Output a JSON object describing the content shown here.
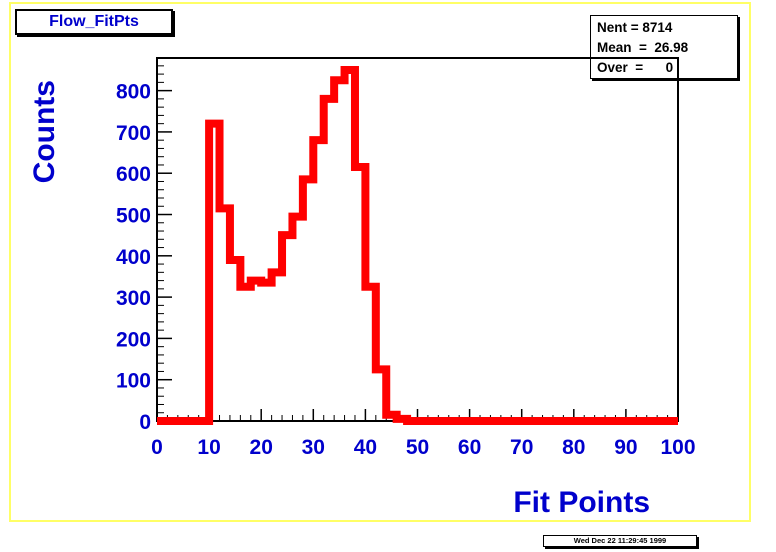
{
  "chart_data": {
    "type": "line",
    "title": "Flow_FitPts",
    "xlabel": "Fit Points",
    "ylabel": "Counts",
    "xlim": [
      0,
      100
    ],
    "ylim": [
      0,
      880
    ],
    "x_ticks": [
      0,
      10,
      20,
      30,
      40,
      50,
      60,
      70,
      80,
      90,
      100
    ],
    "y_ticks": [
      0,
      100,
      200,
      300,
      400,
      500,
      600,
      700,
      800
    ],
    "bin_edges": [
      0,
      10,
      12,
      14,
      16,
      18,
      20,
      22,
      24,
      26,
      28,
      30,
      32,
      34,
      36,
      38,
      40,
      42,
      44,
      46,
      48,
      100
    ],
    "counts": [
      0,
      720,
      515,
      390,
      325,
      340,
      335,
      360,
      450,
      495,
      585,
      680,
      780,
      825,
      850,
      615,
      325,
      125,
      15,
      5,
      0
    ],
    "line_color": "#ff0000",
    "grid": false,
    "legend": "none"
  },
  "stats": {
    "nent": "Nent = 8714",
    "mean": "Mean  =  26.98",
    "over": "Over  =      0"
  },
  "footer": {
    "timestamp": "Wed Dec 22 11:29:45 1999"
  },
  "colors": {
    "axis_text": "#0000cc",
    "frame": "#ffff66"
  }
}
